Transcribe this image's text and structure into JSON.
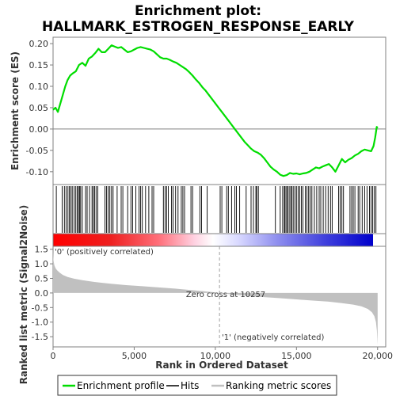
{
  "chart_data": [
    {
      "type": "line",
      "panel": "enrichment-score",
      "title": "Enrichment plot:",
      "subtitle": "HALLMARK_ESTROGEN_RESPONSE_EARLY",
      "ylabel": "Enrichment score (ES)",
      "xlim": [
        0,
        20500
      ],
      "ylim": [
        -0.13,
        0.215
      ],
      "yticks": [
        -0.1,
        -0.05,
        0.0,
        0.05,
        0.1,
        0.15,
        0.2
      ],
      "ytick_labels": [
        "-0.10",
        "-0.05",
        "0.00",
        "0.05",
        "0.10",
        "0.15",
        "0.20"
      ],
      "color": "#00dd00",
      "series": [
        {
          "name": "Enrichment profile",
          "x": [
            0,
            150,
            300,
            450,
            600,
            750,
            900,
            1050,
            1200,
            1400,
            1600,
            1800,
            2000,
            2200,
            2400,
            2600,
            2800,
            3000,
            3200,
            3400,
            3600,
            3800,
            4000,
            4200,
            4400,
            4600,
            4800,
            5000,
            5200,
            5400,
            5600,
            5800,
            6000,
            6200,
            6400,
            6600,
            6800,
            7000,
            7200,
            7400,
            7600,
            7800,
            8000,
            8200,
            8400,
            8600,
            8800,
            9000,
            9200,
            9400,
            9600,
            9800,
            10000,
            10200,
            10400,
            10600,
            10800,
            11000,
            11200,
            11400,
            11600,
            11800,
            12000,
            12200,
            12400,
            12600,
            12800,
            13000,
            13200,
            13400,
            13600,
            13800,
            14000,
            14200,
            14400,
            14600,
            14800,
            15000,
            15200,
            15400,
            15600,
            15800,
            16000,
            16200,
            16400,
            16600,
            16800,
            17000,
            17200,
            17400,
            17600,
            17800,
            18000,
            18200,
            18400,
            18600,
            18800,
            19000,
            19200,
            19400,
            19600,
            19750,
            19850,
            19950,
            20000
          ],
          "y": [
            0.045,
            0.05,
            0.04,
            0.06,
            0.08,
            0.1,
            0.115,
            0.125,
            0.13,
            0.135,
            0.15,
            0.155,
            0.148,
            0.165,
            0.17,
            0.178,
            0.188,
            0.18,
            0.18,
            0.188,
            0.196,
            0.193,
            0.19,
            0.192,
            0.186,
            0.18,
            0.182,
            0.186,
            0.19,
            0.192,
            0.19,
            0.188,
            0.186,
            0.182,
            0.175,
            0.168,
            0.165,
            0.165,
            0.162,
            0.158,
            0.155,
            0.15,
            0.145,
            0.14,
            0.133,
            0.125,
            0.116,
            0.108,
            0.098,
            0.09,
            0.08,
            0.07,
            0.06,
            0.05,
            0.04,
            0.03,
            0.02,
            0.01,
            0.0,
            -0.01,
            -0.02,
            -0.03,
            -0.038,
            -0.046,
            -0.052,
            -0.055,
            -0.06,
            -0.068,
            -0.078,
            -0.088,
            -0.095,
            -0.1,
            -0.107,
            -0.11,
            -0.108,
            -0.103,
            -0.105,
            -0.104,
            -0.106,
            -0.104,
            -0.103,
            -0.1,
            -0.095,
            -0.09,
            -0.092,
            -0.088,
            -0.085,
            -0.082,
            -0.09,
            -0.1,
            -0.085,
            -0.07,
            -0.078,
            -0.072,
            -0.068,
            -0.062,
            -0.058,
            -0.052,
            -0.048,
            -0.05,
            -0.052,
            -0.04,
            -0.02,
            0.005,
            0.002
          ]
        }
      ],
      "zero_line": 0.0
    },
    {
      "type": "rug",
      "panel": "hits",
      "series": [
        {
          "name": "Hits",
          "x": [
            200,
            560,
            700,
            800,
            920,
            1000,
            1100,
            1180,
            1300,
            1400,
            1500,
            1560,
            1640,
            1700,
            1800,
            2000,
            2100,
            2250,
            2400,
            2480,
            2560,
            2650,
            2760,
            3200,
            3300,
            3400,
            3500,
            3600,
            3700,
            3950,
            4200,
            4300,
            4600,
            4800,
            4900,
            5100,
            5300,
            5400,
            5500,
            5700,
            5900,
            6100,
            6200,
            6800,
            6900,
            7000,
            7100,
            7300,
            7400,
            7550,
            7700,
            7900,
            8000,
            8100,
            8500,
            8600,
            9050,
            9150,
            9500,
            10300,
            10400,
            10700,
            10800,
            11000,
            11200,
            11300,
            11500,
            11900,
            12200,
            12350,
            12500,
            12550,
            12650,
            13700,
            14000,
            14150,
            14250,
            14300,
            14400,
            14450,
            14550,
            14650,
            14700,
            14800,
            14900,
            15000,
            15100,
            15200,
            15300,
            15400,
            15550,
            15650,
            15750,
            15850,
            15950,
            16100,
            16250,
            16400,
            16500,
            16650,
            16800,
            16950,
            17100,
            17200,
            17600,
            17700,
            17800,
            17900,
            18300,
            18400,
            18500,
            18600,
            18800,
            18900,
            19050,
            19200,
            19350,
            19500,
            19600,
            19700,
            19800,
            19900
          ]
        }
      ]
    },
    {
      "type": "area",
      "panel": "ranked-list-metric",
      "ylabel": "Ranked list metric (Signal2Noise)",
      "xlabel": "Rank in Ordered Dataset",
      "xlim": [
        0,
        20500
      ],
      "ylim": [
        -1.85,
        1.6
      ],
      "xticks": [
        0,
        5000,
        10000,
        15000,
        20000
      ],
      "xtick_labels": [
        "0",
        "5,000",
        "10,000",
        "15,000",
        "20,000"
      ],
      "yticks": [
        -1.5,
        -1.0,
        -0.5,
        0.0,
        0.5,
        1.0,
        1.5
      ],
      "ytick_labels": [
        "-1.5",
        "-1.0",
        "-0.5",
        "0.0",
        "0.5",
        "1.0",
        "1.5"
      ],
      "color": "#c0c0c0",
      "series": [
        {
          "name": "Ranking metric scores",
          "x": [
            0,
            30,
            80,
            150,
            250,
            400,
            600,
            900,
            1300,
            1800,
            2500,
            3500,
            4500,
            5500,
            6500,
            7500,
            8500,
            9500,
            10257,
            11000,
            12000,
            13000,
            14000,
            15000,
            16000,
            17000,
            17800,
            18500,
            19000,
            19400,
            19650,
            19800,
            19900,
            19960,
            20000
          ],
          "y": [
            1.4,
            1.1,
            0.95,
            0.85,
            0.78,
            0.7,
            0.62,
            0.55,
            0.49,
            0.44,
            0.38,
            0.32,
            0.27,
            0.23,
            0.19,
            0.15,
            0.1,
            0.05,
            0.0,
            -0.05,
            -0.1,
            -0.14,
            -0.18,
            -0.22,
            -0.26,
            -0.3,
            -0.35,
            -0.4,
            -0.46,
            -0.55,
            -0.66,
            -0.8,
            -1.0,
            -1.3,
            -1.78
          ]
        }
      ],
      "zero_cross": 10257,
      "annotations": {
        "zero_cross_label": "Zero cross at 10257",
        "positive_label": "'0' (positively correlated)",
        "negative_label": "'1' (negatively correlated)"
      }
    }
  ],
  "legend": {
    "placement": "bottom",
    "items": [
      {
        "label": "Enrichment profile",
        "color": "#00dd00"
      },
      {
        "label": "Hits",
        "color": "#000000"
      },
      {
        "label": "Ranking metric scores",
        "color": "#c0c0c0"
      }
    ]
  },
  "colors": {
    "heatbar_start": "#ff0000",
    "heatbar_mid": "#ffffff",
    "heatbar_end": "#0000ff",
    "positive_label": "#ff0000",
    "negative_label": "#0000ff"
  }
}
